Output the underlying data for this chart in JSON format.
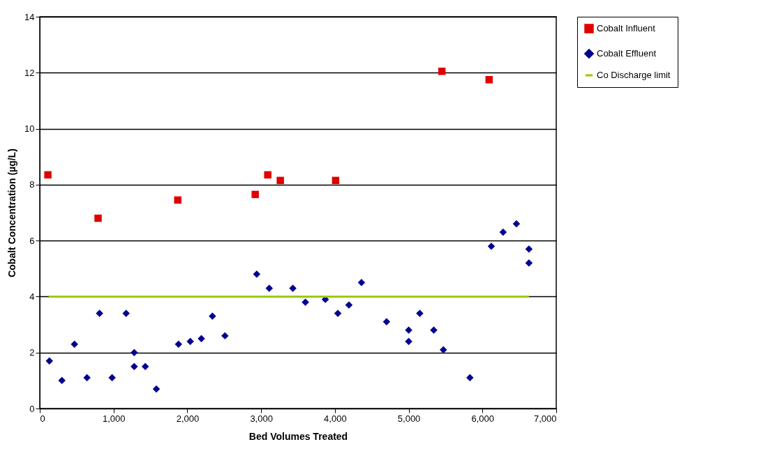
{
  "chart_data": {
    "type": "scatter",
    "xlabel": "Bed Volumes Treated",
    "ylabel": "Cobalt Concentration (µg/L)",
    "xlim": [
      0,
      7000
    ],
    "xticks": [
      {
        "value": 0,
        "label": "0"
      },
      {
        "value": 1000,
        "label": "1,000"
      },
      {
        "value": 2000,
        "label": "2,000"
      },
      {
        "value": 3000,
        "label": "3,000"
      },
      {
        "value": 4000,
        "label": "4,000"
      },
      {
        "value": 5000,
        "label": "5,000"
      },
      {
        "value": 6000,
        "label": "6,000"
      },
      {
        "value": 7000,
        "label": "7,000"
      }
    ],
    "ylim": [
      0,
      14
    ],
    "yticks": [
      0,
      2,
      4,
      6,
      8,
      10,
      12,
      14
    ],
    "grid": "y",
    "legend": "right",
    "series": [
      {
        "name": "Cobalt Influent",
        "color": "#e00000",
        "marker": "square",
        "x": [
          110,
          790,
          1870,
          2920,
          3090,
          3260,
          4010,
          5450,
          6090
        ],
        "values": [
          8.35,
          6.8,
          7.45,
          7.65,
          8.35,
          8.15,
          8.15,
          12.05,
          11.75
        ]
      },
      {
        "name": "Cobalt Effluent",
        "color": "#000090",
        "marker": "diamond",
        "x": [
          130,
          300,
          470,
          640,
          810,
          980,
          1170,
          1280,
          1280,
          1430,
          1580,
          1880,
          2040,
          2190,
          2340,
          2510,
          2940,
          3110,
          3430,
          3600,
          3870,
          4040,
          4190,
          4360,
          4700,
          5000,
          5000,
          5150,
          5340,
          5470,
          5830,
          6120,
          6280,
          6460,
          6630,
          6630
        ],
        "values": [
          1.7,
          1.0,
          2.3,
          1.1,
          3.4,
          1.1,
          3.4,
          2.0,
          1.5,
          1.5,
          0.7,
          2.3,
          2.4,
          2.5,
          3.3,
          2.6,
          4.8,
          4.3,
          4.3,
          3.8,
          3.9,
          3.4,
          3.7,
          4.5,
          3.1,
          2.8,
          2.4,
          3.4,
          2.8,
          2.1,
          1.1,
          5.8,
          6.3,
          6.6,
          5.7,
          5.2
        ]
      },
      {
        "name": "Co Discharge limit",
        "color": "#99cc00",
        "type": "line",
        "x": [
          120,
          6630
        ],
        "values": [
          4,
          4
        ]
      }
    ]
  }
}
